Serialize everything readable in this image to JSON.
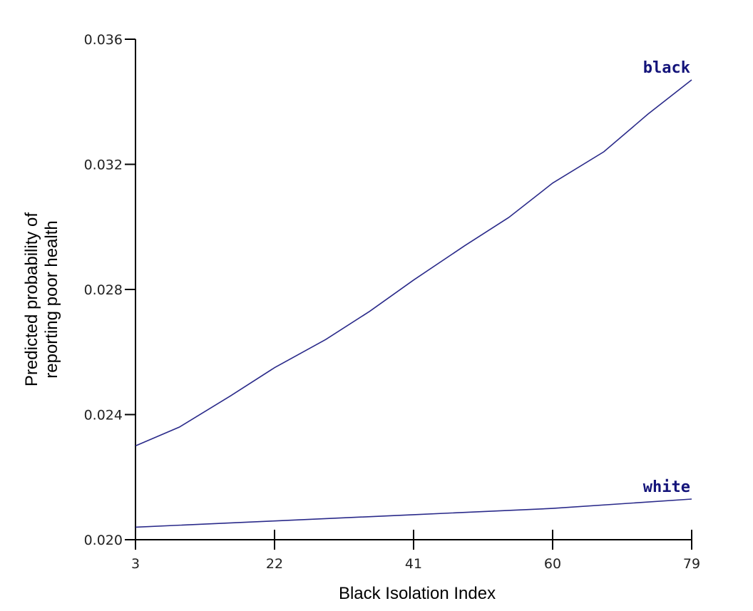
{
  "chart_data": {
    "type": "line",
    "title": "",
    "xlabel": "Black Isolation Index",
    "ylabel_lines": [
      "Predicted probability of",
      "reporting poor health"
    ],
    "xlim": [
      3,
      79
    ],
    "ylim": [
      0.02,
      0.036
    ],
    "x_ticks": [
      "3",
      "22",
      "41",
      "60",
      "79"
    ],
    "x_tick_values": [
      3,
      22,
      41,
      60,
      79
    ],
    "y_ticks": [
      "0.036",
      "0.032",
      "0.028",
      "0.024",
      "0.020"
    ],
    "y_tick_values": [
      0.036,
      0.032,
      0.028,
      0.024,
      0.02
    ],
    "grid": false,
    "line_color": "#2a2a8a",
    "label_color": "#14147a",
    "series": [
      {
        "name": "black",
        "x": [
          3,
          9,
          16,
          22,
          29,
          35,
          41,
          48,
          54,
          60,
          67,
          73,
          79
        ],
        "values": [
          0.023,
          0.0236,
          0.0246,
          0.0255,
          0.0264,
          0.0273,
          0.0283,
          0.0294,
          0.0303,
          0.0314,
          0.0324,
          0.0336,
          0.0347
        ]
      },
      {
        "name": "white",
        "x": [
          3,
          22,
          41,
          60,
          79
        ],
        "values": [
          0.0204,
          0.0206,
          0.0208,
          0.021,
          0.0213
        ]
      }
    ]
  }
}
